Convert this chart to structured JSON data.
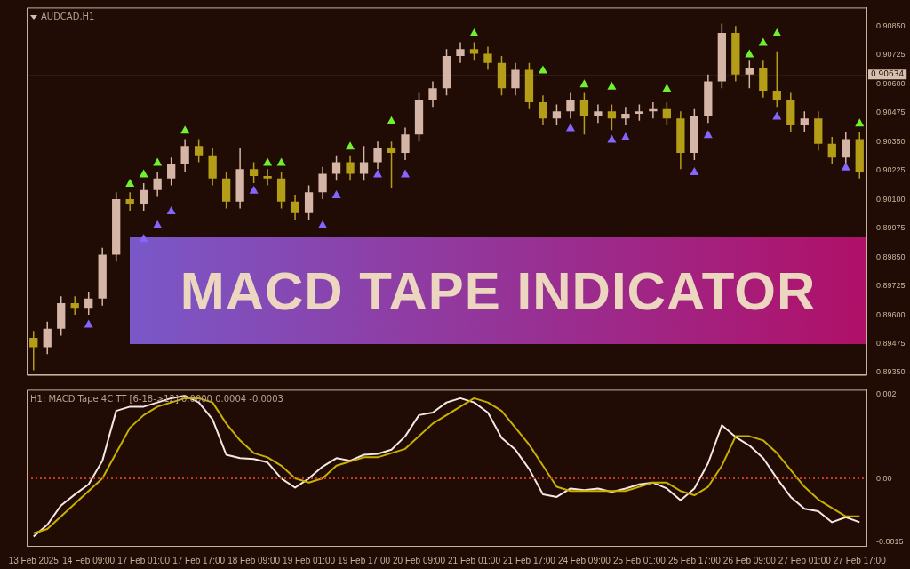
{
  "chart_data": [
    {
      "type": "candlestick",
      "title": "AUDCAD,H1",
      "categories": [
        null,
        null,
        null,
        null,
        null,
        null,
        null,
        null,
        null,
        null,
        null,
        null,
        null,
        null,
        null,
        null,
        null,
        null,
        null,
        null,
        null,
        null,
        null,
        null,
        null,
        null,
        null,
        null,
        null,
        null,
        null,
        null,
        null,
        null,
        null,
        null,
        null,
        null,
        null,
        null,
        null,
        null,
        null,
        null,
        null,
        null,
        null,
        null,
        null,
        null,
        null,
        null,
        null,
        null,
        null,
        null,
        null,
        null,
        null,
        null,
        null
      ],
      "ohlc": [
        [
          0.895,
          0.8953,
          0.8936,
          0.8946
        ],
        [
          0.8946,
          0.8957,
          0.8943,
          0.8954
        ],
        [
          0.8954,
          0.8968,
          0.8951,
          0.8965
        ],
        [
          0.8965,
          0.8968,
          0.896,
          0.8963
        ],
        [
          0.8963,
          0.897,
          0.896,
          0.8967
        ],
        [
          0.8967,
          0.8989,
          0.8964,
          0.8986
        ],
        [
          0.8986,
          0.9013,
          0.8983,
          0.901
        ],
        [
          0.901,
          0.9013,
          0.9005,
          0.9008
        ],
        [
          0.9008,
          0.9017,
          0.9005,
          0.9014
        ],
        [
          0.9014,
          0.9022,
          0.9011,
          0.9019
        ],
        [
          0.9019,
          0.9028,
          0.9016,
          0.9025
        ],
        [
          0.9025,
          0.9036,
          0.9022,
          0.9033
        ],
        [
          0.9033,
          0.9036,
          0.9026,
          0.9029
        ],
        [
          0.9029,
          0.9032,
          0.9016,
          0.9019
        ],
        [
          0.9019,
          0.9022,
          0.9006,
          0.9009
        ],
        [
          0.9009,
          0.9032,
          0.9006,
          0.9023
        ],
        [
          0.9023,
          0.9026,
          0.9017,
          0.902
        ],
        [
          0.902,
          0.9023,
          0.9016,
          0.9019
        ],
        [
          0.9019,
          0.9022,
          0.9006,
          0.9009
        ],
        [
          0.9009,
          0.9012,
          0.9001,
          0.9004
        ],
        [
          0.9004,
          0.9016,
          0.9001,
          0.9013
        ],
        [
          0.9013,
          0.9024,
          0.901,
          0.9021
        ],
        [
          0.9021,
          0.9029,
          0.9018,
          0.9026
        ],
        [
          0.9026,
          0.9029,
          0.9018,
          0.9021
        ],
        [
          0.9021,
          0.9033,
          0.9018,
          0.9026
        ],
        [
          0.9026,
          0.9035,
          0.9023,
          0.9032
        ],
        [
          0.9032,
          0.9035,
          0.9015,
          0.903
        ],
        [
          0.903,
          0.9041,
          0.9027,
          0.9038
        ],
        [
          0.9038,
          0.9056,
          0.9035,
          0.9053
        ],
        [
          0.9053,
          0.9061,
          0.905,
          0.9058
        ],
        [
          0.9058,
          0.9075,
          0.9055,
          0.9072
        ],
        [
          0.9072,
          0.9078,
          0.9069,
          0.9075
        ],
        [
          0.9075,
          0.9078,
          0.907,
          0.9073
        ],
        [
          0.9073,
          0.9076,
          0.9066,
          0.9069
        ],
        [
          0.9069,
          0.9072,
          0.9055,
          0.9058
        ],
        [
          0.9058,
          0.9069,
          0.9055,
          0.9066
        ],
        [
          0.9066,
          0.9069,
          0.9049,
          0.9052
        ],
        [
          0.9052,
          0.9055,
          0.9042,
          0.9045
        ],
        [
          0.9045,
          0.9051,
          0.9042,
          0.9048
        ],
        [
          0.9048,
          0.9056,
          0.9045,
          0.9053
        ],
        [
          0.9053,
          0.9056,
          0.9038,
          0.9046
        ],
        [
          0.9046,
          0.9051,
          0.9043,
          0.9048
        ],
        [
          0.9048,
          0.9051,
          0.904,
          0.9045
        ],
        [
          0.9045,
          0.905,
          0.9042,
          0.9047
        ],
        [
          0.9047,
          0.9051,
          0.9044,
          0.9048
        ],
        [
          0.9048,
          0.9052,
          0.9045,
          0.9049
        ],
        [
          0.9049,
          0.9052,
          0.9042,
          0.9045
        ],
        [
          0.9045,
          0.9048,
          0.9023,
          0.903
        ],
        [
          0.903,
          0.9049,
          0.9027,
          0.9046
        ],
        [
          0.9046,
          0.9064,
          0.9043,
          0.9061
        ],
        [
          0.9061,
          0.9086,
          0.9058,
          0.9082
        ],
        [
          0.9082,
          0.9085,
          0.9061,
          0.9064
        ],
        [
          0.9064,
          0.907,
          0.9058,
          0.9067
        ],
        [
          0.9067,
          0.907,
          0.9054,
          0.9057
        ],
        [
          0.9057,
          0.9074,
          0.905,
          0.9053
        ],
        [
          0.9053,
          0.9056,
          0.9039,
          0.9042
        ],
        [
          0.9042,
          0.9048,
          0.9039,
          0.9045
        ],
        [
          0.9045,
          0.9048,
          0.9031,
          0.9034
        ],
        [
          0.9034,
          0.9037,
          0.9025,
          0.9028
        ],
        [
          0.9028,
          0.9039,
          0.9025,
          0.9036
        ],
        [
          0.9036,
          0.9039,
          0.9019,
          0.9022
        ]
      ],
      "colors": [
        "#b49e18",
        "#d4b5a6",
        "#d4b5a6",
        "#b49e18",
        "#d4b5a6",
        "#d4b5a6",
        "#d4b5a6",
        "#b49e18",
        "#d4b5a6",
        "#d4b5a6",
        "#d4b5a6",
        "#d4b5a6",
        "#b49e18",
        "#b49e18",
        "#b49e18",
        "#d4b5a6",
        "#b49e18",
        "#b49e18",
        "#b49e18",
        "#b49e18",
        "#d4b5a6",
        "#d4b5a6",
        "#d4b5a6",
        "#b49e18",
        "#d4b5a6",
        "#d4b5a6",
        "#b49e18",
        "#d4b5a6",
        "#d4b5a6",
        "#d4b5a6",
        "#d4b5a6",
        "#d4b5a6",
        "#b49e18",
        "#b49e18",
        "#b49e18",
        "#d4b5a6",
        "#b49e18",
        "#b49e18",
        "#d4b5a6",
        "#d4b5a6",
        "#b49e18",
        "#d4b5a6",
        "#b49e18",
        "#d4b5a6",
        "#d4b5a6",
        "#d4b5a6",
        "#b49e18",
        "#b49e18",
        "#d4b5a6",
        "#d4b5a6",
        "#d4b5a6",
        "#b49e18",
        "#d4b5a6",
        "#b49e18",
        "#b49e18",
        "#b49e18",
        "#d4b5a6",
        "#b49e18",
        "#b49e18",
        "#d4b5a6",
        "#b49e18"
      ],
      "series": [
        {
          "type": "scatter",
          "color": "#8466ff",
          "values": [
            null,
            null,
            null,
            null,
            0.8956,
            null,
            null,
            null,
            0.8993,
            0.8999,
            0.9005,
            null,
            null,
            null,
            null,
            null,
            0.9014,
            null,
            null,
            null,
            null,
            0.8999,
            0.9012,
            null,
            null,
            0.9021,
            null,
            0.9021,
            null,
            null,
            null,
            null,
            null,
            null,
            null,
            null,
            null,
            null,
            null,
            0.9041,
            null,
            null,
            0.9036,
            0.9037,
            null,
            null,
            null,
            null,
            0.9022,
            0.9038,
            null,
            null,
            null,
            null,
            0.9046,
            null,
            null,
            null,
            null,
            0.9024,
            null
          ]
        },
        {
          "type": "scatter",
          "color": "#70f030",
          "values": [
            null,
            null,
            null,
            null,
            null,
            null,
            null,
            0.9017,
            0.9021,
            0.9026,
            null,
            0.904,
            null,
            null,
            null,
            null,
            null,
            0.9026,
            0.9026,
            null,
            null,
            null,
            null,
            0.9033,
            null,
            null,
            0.9044,
            null,
            null,
            null,
            null,
            null,
            0.9082,
            null,
            null,
            null,
            null,
            0.9066,
            null,
            null,
            0.906,
            null,
            0.9059,
            null,
            null,
            null,
            0.9058,
            null,
            null,
            null,
            null,
            null,
            0.9073,
            0.9078,
            0.9082,
            null,
            null,
            null,
            null,
            null,
            0.9043
          ]
        }
      ],
      "marker": "triangle",
      "ylim": [
        0.8934,
        0.9093
      ],
      "yticks": [
        {
          "value": 0.9085,
          "label": "0.90850"
        },
        {
          "value": 0.90725,
          "label": "0.90725"
        },
        {
          "value": 0.906,
          "label": "0.90600"
        },
        {
          "value": 0.90475,
          "label": "0.90475"
        },
        {
          "value": 0.9035,
          "label": "0.90350"
        },
        {
          "value": 0.90225,
          "label": "0.90225"
        },
        {
          "value": 0.901,
          "label": "0.90100"
        },
        {
          "value": 0.89975,
          "label": "0.89975"
        },
        {
          "value": 0.8985,
          "label": "0.89850"
        },
        {
          "value": 0.89725,
          "label": "0.89725"
        },
        {
          "value": 0.896,
          "label": "0.89600"
        },
        {
          "value": 0.89475,
          "label": "0.89475"
        },
        {
          "value": 0.8935,
          "label": "0.89350"
        }
      ],
      "tick_labels": "y",
      "ref_lines": [
        {
          "axis": "y",
          "value": 0.90634,
          "label": "0.90634",
          "color": "#8a5a48"
        }
      ],
      "annotations": [
        "MACD TAPE INDICATOR"
      ]
    },
    {
      "type": "line",
      "title": "H1: MACD Tape 4C TT [6-18->12] 0.0000 0.0004 -0.0003",
      "categories": [
        "13 Feb 2025",
        null,
        null,
        null,
        "14 Feb 09:00",
        null,
        null,
        null,
        "17 Feb 01:00",
        null,
        null,
        null,
        "17 Feb 17:00",
        null,
        null,
        null,
        "18 Feb 09:00",
        null,
        null,
        null,
        "19 Feb 01:00",
        null,
        null,
        null,
        "19 Feb 17:00",
        null,
        null,
        null,
        "20 Feb 09:00",
        null,
        null,
        null,
        "21 Feb 01:00",
        null,
        null,
        null,
        "21 Feb 17:00",
        null,
        null,
        null,
        "24 Feb 09:00",
        null,
        null,
        null,
        "25 Feb 01:00",
        null,
        null,
        null,
        "25 Feb 17:00",
        null,
        null,
        null,
        "26 Feb 09:00",
        null,
        null,
        null,
        "27 Feb 01:00",
        null,
        null,
        null,
        "27 Feb 17:00"
      ],
      "series": [
        {
          "color": "#c8b000",
          "values": [
            -0.0013,
            -0.0012,
            -0.0009,
            -0.0006,
            -0.0003,
            0.0,
            0.0006,
            0.0012,
            0.0015,
            0.0017,
            0.0018,
            0.0019,
            0.0019,
            0.0018,
            0.0013,
            0.0009,
            0.0006,
            0.0005,
            0.0003,
            0.0,
            -0.0001,
            0.0,
            0.0003,
            0.0004,
            0.0005,
            0.0005,
            0.0006,
            0.0007,
            0.001,
            0.0013,
            0.0015,
            0.0017,
            0.0019,
            0.0018,
            0.0016,
            0.0012,
            0.0008,
            0.0003,
            -0.0002,
            -0.0003,
            -0.0003,
            -0.0003,
            -0.0003,
            -0.0003,
            -0.0002,
            -0.0001,
            -0.0001,
            -0.0003,
            -0.0004,
            -0.0002,
            0.0003,
            0.001,
            0.001,
            0.0009,
            0.0006,
            0.0002,
            -0.0002,
            -0.0005,
            -0.0007,
            -0.0009,
            -0.0009
          ]
        },
        {
          "color": "#f6e6e6",
          "values": [
            -0.00138,
            -0.0011,
            -0.00064,
            -0.00038,
            -0.00014,
            0.00042,
            0.0016,
            0.0017,
            0.0017,
            0.0018,
            0.0019,
            0.00196,
            0.0018,
            0.0014,
            0.00056,
            0.00048,
            0.00046,
            0.00038,
            0.0,
            -0.00022,
            0.0,
            0.00028,
            0.00048,
            0.00042,
            0.00056,
            0.00058,
            0.00068,
            0.001,
            0.0015,
            0.00156,
            0.0018,
            0.0019,
            0.0018,
            0.00156,
            0.00096,
            0.00068,
            0.00022,
            -0.00038,
            -0.00044,
            -0.00024,
            -0.00028,
            -0.00024,
            -0.00032,
            -0.00024,
            -0.00014,
            -0.0001,
            -0.00024,
            -0.00052,
            -0.00024,
            0.00036,
            0.00126,
            0.00098,
            0.00078,
            0.00048,
            0.0,
            -0.00044,
            -0.00072,
            -0.00078,
            -0.00104,
            -0.00092,
            -0.00104
          ]
        }
      ],
      "ylim": [
        -0.0016,
        0.0021
      ],
      "yticks": [
        0.002,
        {
          "value": 0,
          "label": "0.00"
        },
        -0.0015
      ],
      "ref_lines": [
        {
          "axis": "y",
          "value": 0,
          "color": "#c03a1c",
          "line_style": "dotted"
        }
      ]
    }
  ]
}
